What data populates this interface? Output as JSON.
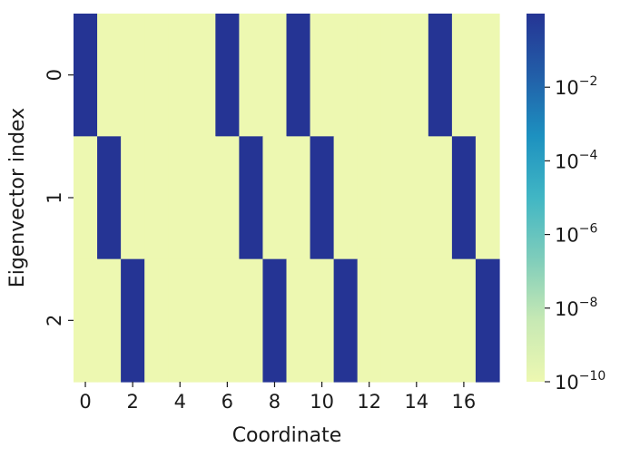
{
  "chart_data": {
    "type": "heatmap",
    "title": "",
    "xlabel": "Coordinate",
    "ylabel": "Eigenvector index",
    "x_tick_labels": [
      "0",
      "2",
      "4",
      "6",
      "8",
      "10",
      "12",
      "14",
      "16"
    ],
    "x_tick_values": [
      0,
      2,
      4,
      6,
      8,
      10,
      12,
      14,
      16
    ],
    "y_tick_labels": [
      "0",
      "1",
      "2"
    ],
    "y_tick_values": [
      0,
      1,
      2
    ],
    "n_cols": 18,
    "n_rows": 3,
    "values": [
      [
        1,
        1e-10,
        1e-10,
        1e-10,
        1e-10,
        1e-10,
        1,
        1e-10,
        1e-10,
        1,
        1e-10,
        1e-10,
        1e-10,
        1e-10,
        1e-10,
        1,
        1e-10,
        1e-10
      ],
      [
        1e-10,
        1,
        1e-10,
        1e-10,
        1e-10,
        1e-10,
        1e-10,
        1,
        1e-10,
        1e-10,
        1,
        1e-10,
        1e-10,
        1e-10,
        1e-10,
        1e-10,
        1,
        1e-10
      ],
      [
        1e-10,
        1e-10,
        1,
        1e-10,
        1e-10,
        1e-10,
        1e-10,
        1e-10,
        1,
        1e-10,
        1e-10,
        1,
        1e-10,
        1e-10,
        1e-10,
        1e-10,
        1e-10,
        1
      ]
    ],
    "colorbar": {
      "scale": "log",
      "colormap": "YlGnBu",
      "range": [
        1e-10,
        1
      ],
      "ticks": [
        {
          "value": 1e-10,
          "base": "10",
          "exp": "−10"
        },
        {
          "value": 1e-08,
          "base": "10",
          "exp": "−8"
        },
        {
          "value": 1e-06,
          "base": "10",
          "exp": "−6"
        },
        {
          "value": 0.0001,
          "base": "10",
          "exp": "−4"
        },
        {
          "value": 0.01,
          "base": "10",
          "exp": "−2"
        }
      ],
      "colors": [
        "#edf8b1",
        "#c7e9b4",
        "#7fcdbb",
        "#41b6c4",
        "#1d91c0",
        "#225ea8",
        "#253494"
      ]
    }
  }
}
